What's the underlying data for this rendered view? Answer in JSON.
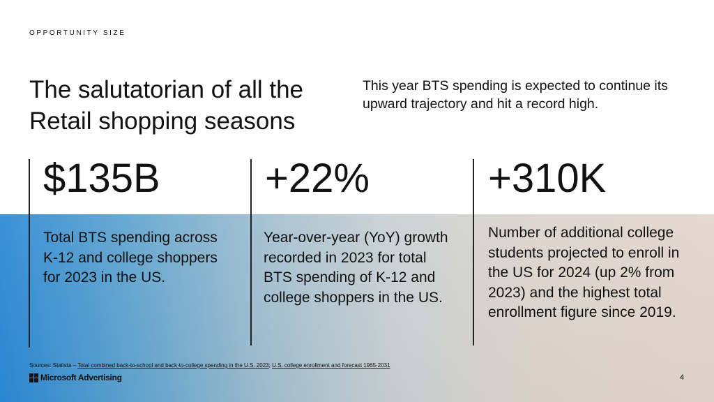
{
  "eyebrow": "OPPORTUNITY SIZE",
  "title_line1": "The salutatorian of all the",
  "title_line2": "Retail shopping seasons",
  "subtitle": "This year BTS spending is expected to continue its upward trajectory and hit a record high.",
  "stats": [
    {
      "value": "$135B",
      "description": "Total BTS spending across K-12 and college shoppers for 2023 in the US."
    },
    {
      "value": "+22%",
      "description": "Year-over-year (YoY) growth recorded in 2023 for total BTS spending of K-12 and college shoppers in the US."
    },
    {
      "value": "+310K",
      "description": "Number of additional college students projected to enroll in the US for 2024 (up 2% from 2023) and the highest total enrollment figure since 2019."
    }
  ],
  "sources": {
    "prefix": "Sources: Statista – ",
    "link1": "Total combined back-to-school and back-to-college spending in the U.S. 2023",
    "separator": "; ",
    "link2": "U.S. college enrollment and forecast 1965-2031"
  },
  "logo_text": "Microsoft Advertising",
  "page_number": "4"
}
